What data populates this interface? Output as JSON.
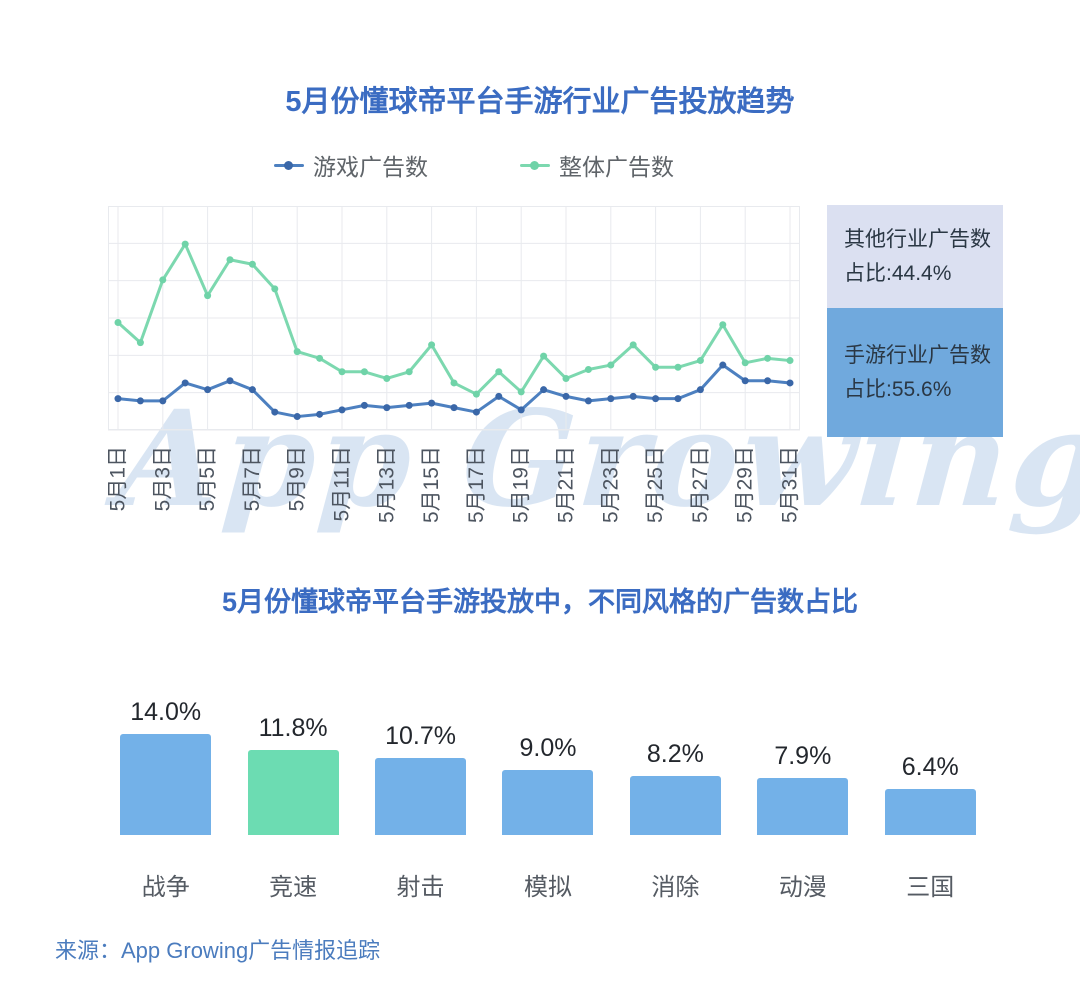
{
  "colors": {
    "title": "#3b6cc2",
    "legend_text": "#5f6469",
    "grid": "#e8eaee",
    "axis_label": "#4d5560",
    "value_label": "#23272d",
    "category_label": "#555b63",
    "box_text": "#2a3744",
    "footer_text": "#4b7cbe",
    "watermark": "#b5cde8",
    "game_line": "#4d80c0",
    "game_dot": "#3a67a8",
    "overall_line": "#7cd8af",
    "overall_dot": "#6fd3a8",
    "bar_blue": "#73b1e8",
    "bar_green": "#6cdcb2",
    "box_other_bg": "#dbe0f1",
    "box_mobile_bg": "#70a9dd"
  },
  "trend_section": {
    "title": "5月份懂球帝平台手游行业广告投放趋势",
    "legend": [
      {
        "label": "游戏广告数"
      },
      {
        "label": "整体广告数"
      }
    ]
  },
  "share_boxes": [
    {
      "title": "其他行业广告数",
      "value": "占比:44.4%",
      "pct": 44.4,
      "bg": "#dbe0f1"
    },
    {
      "title": "手游行业广告数",
      "value": "占比:55.6%",
      "pct": 55.6,
      "bg": "#70a9dd"
    }
  ],
  "style_section": {
    "title": "5月份懂球帝平台手游投放中，不同风格的广告数占比"
  },
  "footer": {
    "source": "来源：App Growing广告情报追踪"
  },
  "watermark": "App Growing",
  "chart_data": [
    {
      "type": "line",
      "title": "5月份懂球帝平台手游行业广告投放趋势",
      "x": [
        "5月1日",
        "5月2日",
        "5月3日",
        "5月4日",
        "5月5日",
        "5月6日",
        "5月7日",
        "5月8日",
        "5月9日",
        "5月10日",
        "5月11日",
        "5月12日",
        "5月13日",
        "5月14日",
        "5月15日",
        "5月16日",
        "5月17日",
        "5月18日",
        "5月19日",
        "5月20日",
        "5月21日",
        "5月22日",
        "5月23日",
        "5月24日",
        "5月25日",
        "5月26日",
        "5月27日",
        "5月28日",
        "5月29日",
        "5月30日",
        "5月31日"
      ],
      "x_ticks_shown": [
        "5月1日",
        "5月3日",
        "5月5日",
        "5月7日",
        "5月9日",
        "5月11日",
        "5月13日",
        "5月15日",
        "5月17日",
        "5月19日",
        "5月21日",
        "5月23日",
        "5月25日",
        "5月27日",
        "5月29日",
        "5月31日"
      ],
      "series": [
        {
          "name": "游戏广告数",
          "color": "#4d80c0",
          "dot_color": "#3a67a8",
          "values": [
            14,
            13,
            13,
            21,
            18,
            22,
            18,
            8,
            6,
            7,
            9,
            11,
            10,
            11,
            12,
            10,
            8,
            15,
            9,
            18,
            15,
            13,
            14,
            15,
            14,
            14,
            18,
            29,
            22,
            22,
            21
          ]
        },
        {
          "name": "整体广告数",
          "color": "#7cd8af",
          "dot_color": "#6fd3a8",
          "values": [
            48,
            39,
            67,
            83,
            60,
            76,
            74,
            63,
            35,
            32,
            26,
            26,
            23,
            26,
            38,
            21,
            16,
            26,
            17,
            33,
            23,
            27,
            29,
            38,
            28,
            28,
            31,
            47,
            30,
            32,
            31
          ]
        }
      ],
      "ylabel": "",
      "xlabel": "",
      "grid": true,
      "legend_position": "top",
      "note": "y axis has no tick labels in source image; series values are estimated relative units on a 0-100 scale of plot height"
    },
    {
      "type": "bar",
      "title": "5月份懂球帝平台手游投放中，不同风格的广告数占比",
      "categories": [
        "战争",
        "竞速",
        "射击",
        "模拟",
        "消除",
        "动漫",
        "三国"
      ],
      "values": [
        14.0,
        11.8,
        10.7,
        9.0,
        8.2,
        7.9,
        6.4
      ],
      "labels": [
        "14.0%",
        "11.8%",
        "10.7%",
        "9.0%",
        "8.2%",
        "7.9%",
        "6.4%"
      ],
      "bar_colors": [
        "#73b1e8",
        "#6cdcb2",
        "#73b1e8",
        "#73b1e8",
        "#73b1e8",
        "#73b1e8",
        "#73b1e8"
      ],
      "xlabel": "",
      "ylabel": "",
      "ylim": [
        0,
        16
      ],
      "grid": false
    },
    {
      "type": "bar",
      "title": "行业广告数占比",
      "categories": [
        "其他行业广告数",
        "手游行业广告数"
      ],
      "values": [
        44.4,
        55.6
      ],
      "labels": [
        "占比:44.4%",
        "占比:55.6%"
      ],
      "note": "rendered as two stacked proportional boxes right of the line chart"
    }
  ]
}
